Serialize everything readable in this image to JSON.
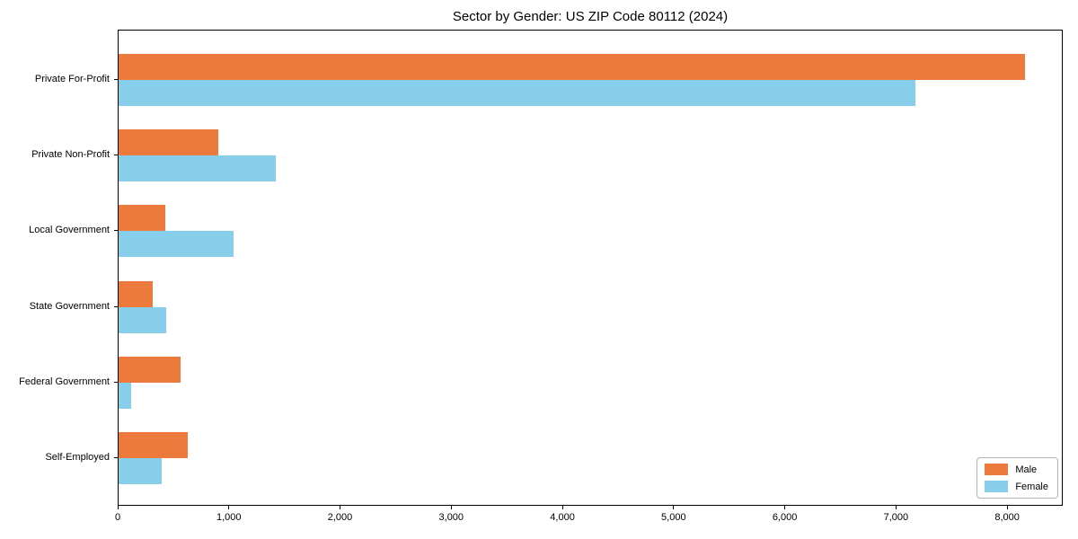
{
  "title": "Sector by Gender: US ZIP Code 80112 (2024)",
  "legend": {
    "position": "lower right",
    "items": [
      {
        "label": "Male",
        "color": "#EB7A3C"
      },
      {
        "label": "Female",
        "color": "#87CEEB"
      }
    ]
  },
  "chart_data": {
    "type": "bar",
    "orientation": "horizontal",
    "title": "Sector by Gender: US ZIP Code 80112 (2024)",
    "categories": [
      "Private For-Profit",
      "Private Non-Profit",
      "Local Government",
      "State Government",
      "Federal Government",
      "Self-Employed"
    ],
    "series": [
      {
        "name": "Male",
        "color": "#EB7A3C",
        "values": [
          8150,
          900,
          420,
          310,
          560,
          620
        ]
      },
      {
        "name": "Female",
        "color": "#87CEEB",
        "values": [
          7170,
          1410,
          1030,
          430,
          110,
          390
        ]
      }
    ],
    "xlabel": "",
    "ylabel": "",
    "xlim": [
      0,
      8500
    ],
    "x_ticks": [
      0,
      1000,
      2000,
      3000,
      4000,
      5000,
      6000,
      7000,
      8000
    ],
    "x_tick_labels": [
      "0",
      "1,000",
      "2,000",
      "3,000",
      "4,000",
      "5,000",
      "6,000",
      "7,000",
      "8,000"
    ],
    "grid": false,
    "legend_position": "lower right"
  }
}
